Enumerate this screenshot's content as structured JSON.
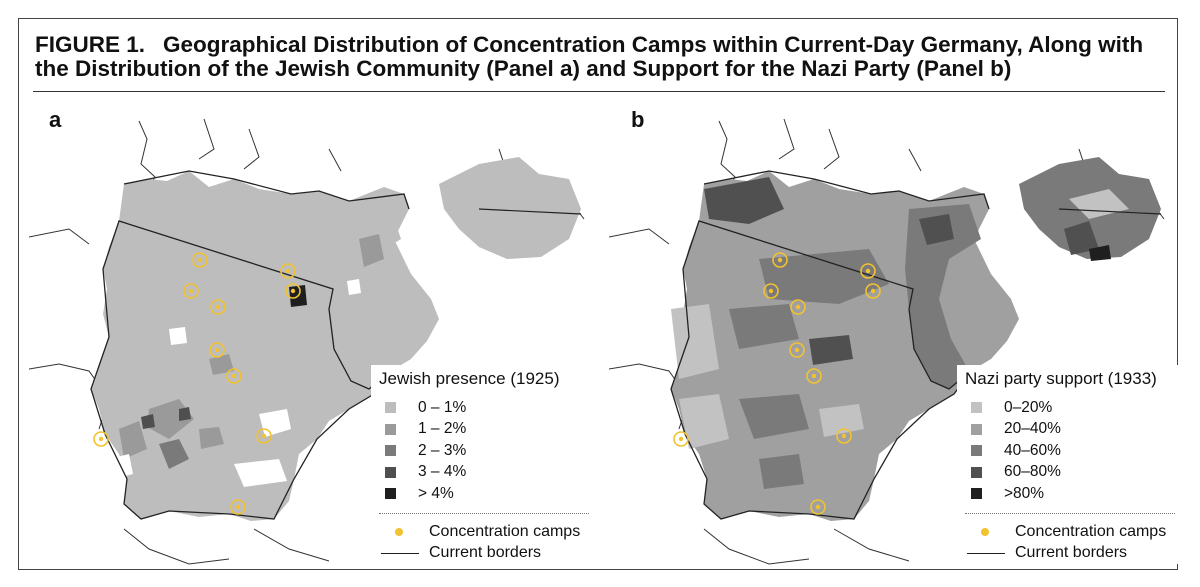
{
  "figure": {
    "label": "FIGURE 1.",
    "title": "Geographical Distribution of Concentration Camps within Current-Day Germany, Along with the Distribution of the Jewish Community (Panel a) and Support for the Nazi Party (Panel b)"
  },
  "panels": [
    {
      "label": "a",
      "legend_title": "Jewish presence (1925)",
      "categories": [
        {
          "label": "0 – 1%",
          "color": "#bdbdbd"
        },
        {
          "label": "1 – 2%",
          "color": "#9a9a9a"
        },
        {
          "label": "2 – 3%",
          "color": "#7a7a7a"
        },
        {
          "label": "3 – 4%",
          "color": "#4f4f4f"
        },
        {
          "label": "> 4%",
          "color": "#1f1f1f"
        }
      ]
    },
    {
      "label": "b",
      "legend_title": "Nazi party support (1933)",
      "categories": [
        {
          "label": "0–20%",
          "color": "#c2c2c2"
        },
        {
          "label": "20–40%",
          "color": "#a0a0a0"
        },
        {
          "label": "40–60%",
          "color": "#7a7a7a"
        },
        {
          "label": "60–80%",
          "color": "#505050"
        },
        {
          "label": ">80%",
          "color": "#1f1f1f"
        }
      ]
    }
  ],
  "legend_common": {
    "camps_label": "Concentration camps",
    "borders_label": "Current borders",
    "camp_color": "#f2c230",
    "border_color": "#222222"
  }
}
